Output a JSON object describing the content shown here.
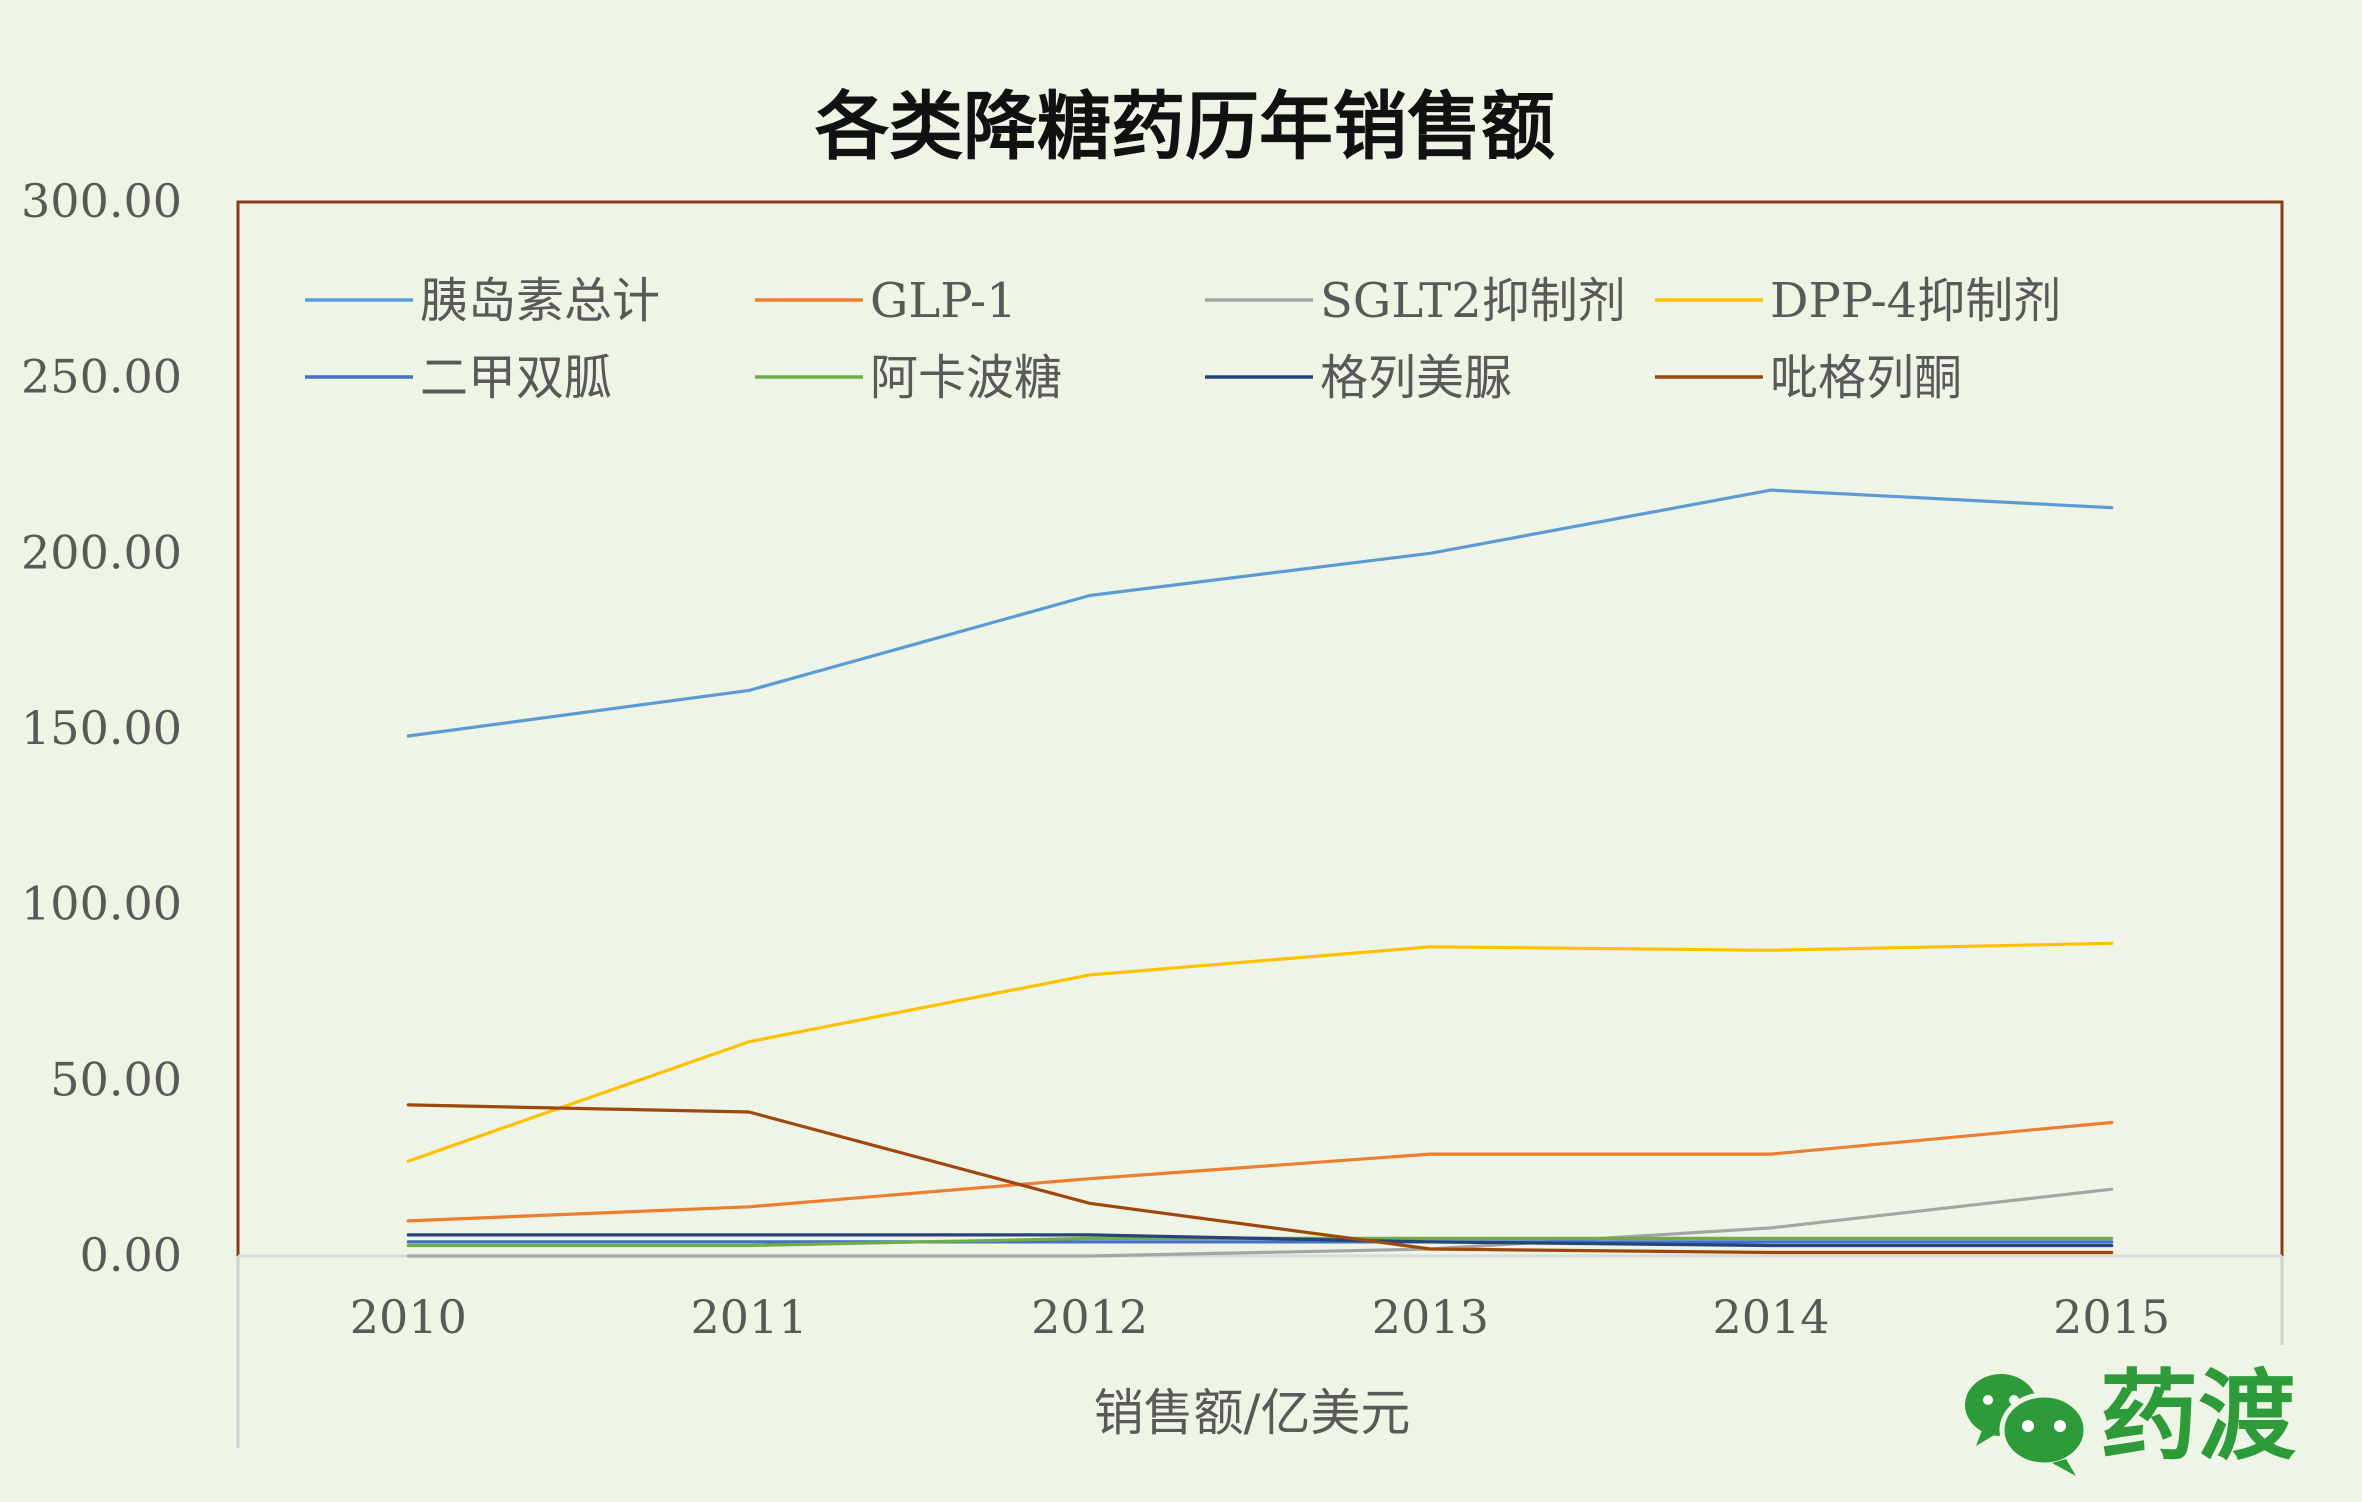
{
  "chart_data": {
    "type": "line",
    "title": "各类降糖药历年销售额",
    "xlabel": "销售额/亿美元",
    "ylabel": "",
    "categories": [
      "2010",
      "2011",
      "2012",
      "2013",
      "2014",
      "2015"
    ],
    "ylim": [
      0,
      300
    ],
    "yticks": [
      0,
      50,
      100,
      150,
      200,
      250,
      300
    ],
    "ytick_labels": [
      "0.00",
      "50.00",
      "100.00",
      "150.00",
      "200.00",
      "250.00",
      "300.00"
    ],
    "legend_position": "top",
    "grid": false,
    "series": [
      {
        "name": "胰岛素总计",
        "color": "#5b9bd5",
        "values": [
          148,
          161,
          188,
          200,
          218,
          213
        ]
      },
      {
        "name": "GLP-1",
        "color": "#ed7d31",
        "values": [
          10,
          14,
          22,
          29,
          29,
          38
        ]
      },
      {
        "name": "SGLT2抑制剂",
        "color": "#a5a5a5",
        "values": [
          0,
          0,
          0,
          2,
          8,
          19
        ]
      },
      {
        "name": "DPP-4抑制剂",
        "color": "#ffc000",
        "values": [
          27,
          61,
          80,
          88,
          87,
          89
        ]
      },
      {
        "name": "二甲双胍",
        "color": "#4472c4",
        "values": [
          4,
          4,
          4,
          4,
          4,
          4
        ]
      },
      {
        "name": "阿卡波糖",
        "color": "#70ad47",
        "values": [
          3,
          3,
          5,
          5,
          5,
          5
        ]
      },
      {
        "name": "格列美脲",
        "color": "#264478",
        "values": [
          6,
          6,
          6,
          4,
          3,
          3
        ]
      },
      {
        "name": "吡格列酮",
        "color": "#9e480e",
        "values": [
          43,
          41,
          15,
          2,
          1,
          1
        ]
      }
    ]
  },
  "watermark": {
    "text": "药渡",
    "icon": "wechat-icon",
    "color": "#2e9b3a"
  }
}
